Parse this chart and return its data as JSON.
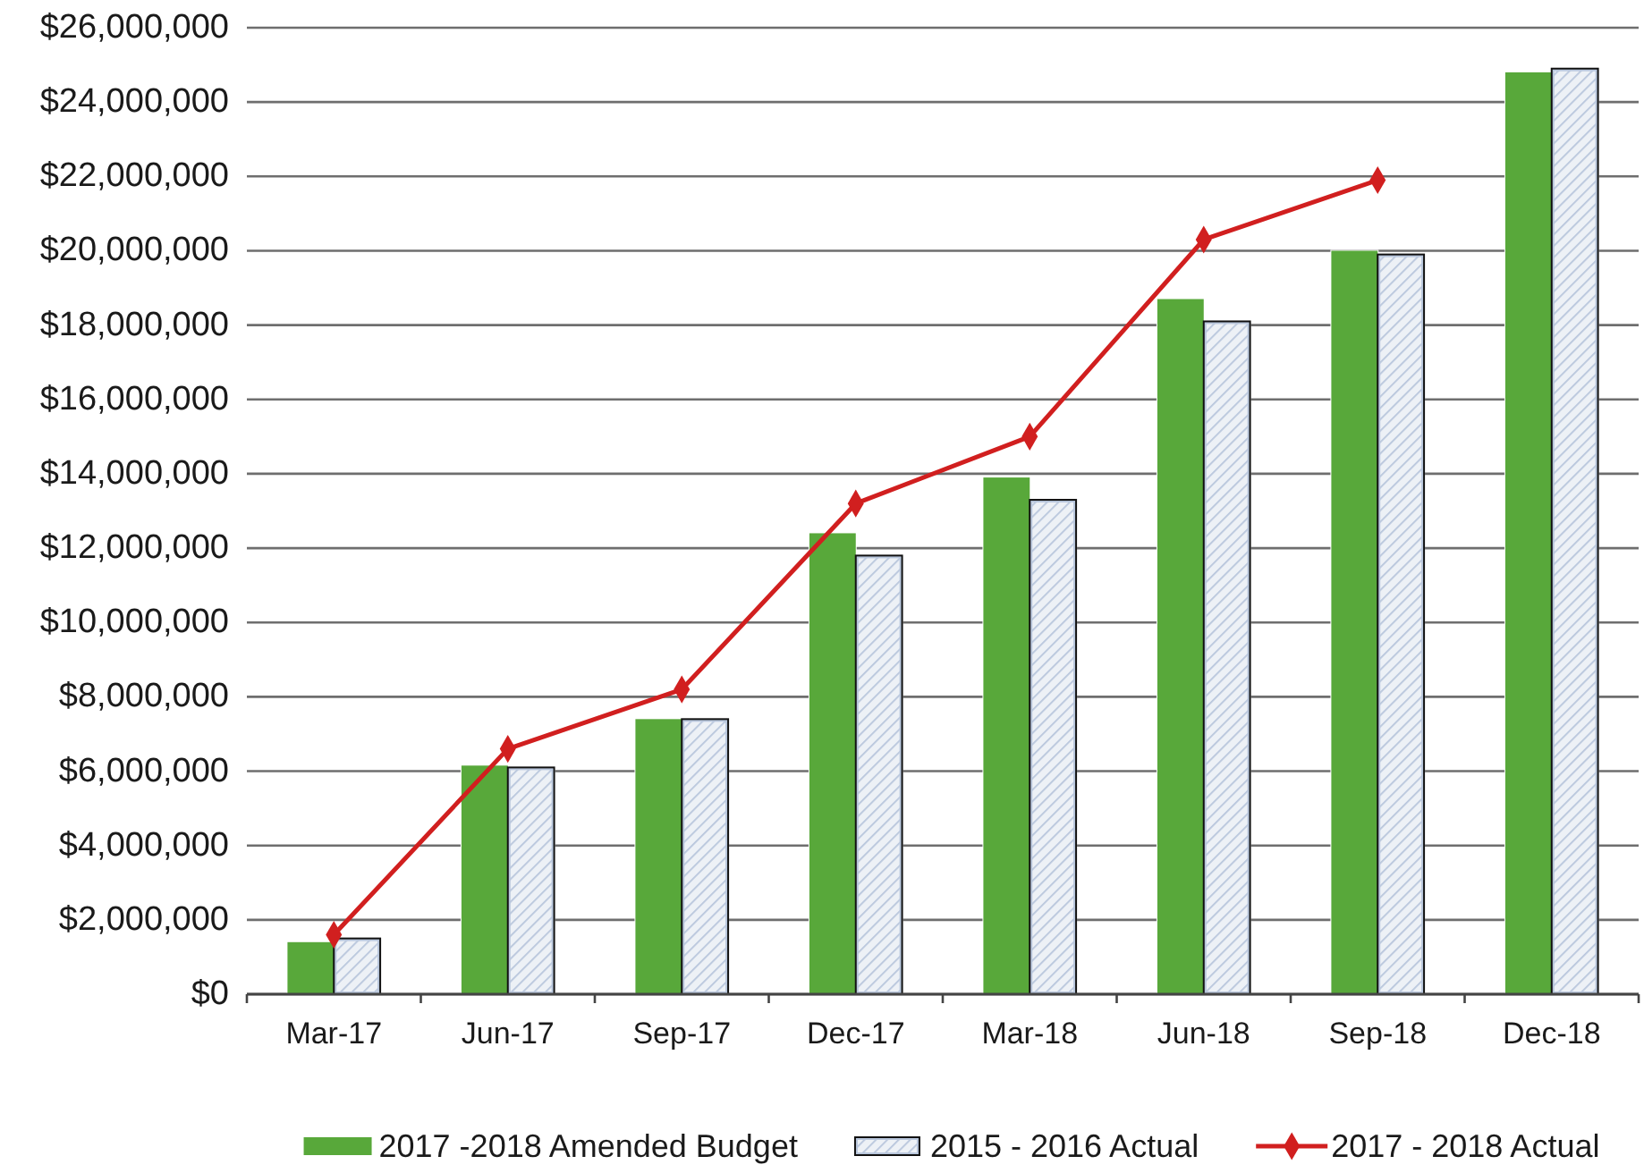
{
  "chart_data": {
    "type": "bar",
    "categories": [
      "Mar-17",
      "Jun-17",
      "Sep-17",
      "Dec-17",
      "Mar-18",
      "Jun-18",
      "Sep-18",
      "Dec-18"
    ],
    "series": [
      {
        "name": "2017 -2018 Amended Budget",
        "color": "#58a83a",
        "values": [
          1400000,
          6150000,
          7400000,
          12400000,
          13900000,
          18700000,
          20000000,
          24800000
        ]
      },
      {
        "name": "2015 - 2016 Actual",
        "color": "#b8c6dc",
        "values": [
          1500000,
          6100000,
          7400000,
          11800000,
          13300000,
          18100000,
          19900000,
          24900000
        ]
      },
      {
        "name": "2017 - 2018 Actual",
        "type": "line",
        "color": "#d11f1f",
        "values": [
          1600000,
          6600000,
          8200000,
          13200000,
          15000000,
          20300000,
          21900000,
          null
        ]
      }
    ],
    "ylim": [
      0,
      26000000
    ],
    "yticks": [
      {
        "value": 0,
        "label": "$0"
      },
      {
        "value": 2000000,
        "label": "$2,000,000"
      },
      {
        "value": 4000000,
        "label": "$4,000,000"
      },
      {
        "value": 6000000,
        "label": "$6,000,000"
      },
      {
        "value": 8000000,
        "label": "$8,000,000"
      },
      {
        "value": 10000000,
        "label": "$10,000,000"
      },
      {
        "value": 12000000,
        "label": "$12,000,000"
      },
      {
        "value": 14000000,
        "label": "$14,000,000"
      },
      {
        "value": 16000000,
        "label": "$16,000,000"
      },
      {
        "value": 18000000,
        "label": "$18,000,000"
      },
      {
        "value": 20000000,
        "label": "$20,000,000"
      },
      {
        "value": 22000000,
        "label": "$22,000,000"
      },
      {
        "value": 24000000,
        "label": "$24,000,000"
      },
      {
        "value": 26000000,
        "label": "$26,000,000"
      }
    ],
    "grid": "y",
    "legend": "bottom",
    "marker": "diamond",
    "line_style": "solid"
  }
}
